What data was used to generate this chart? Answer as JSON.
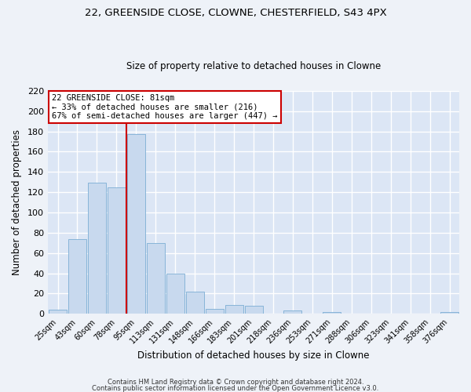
{
  "title1": "22, GREENSIDE CLOSE, CLOWNE, CHESTERFIELD, S43 4PX",
  "title2": "Size of property relative to detached houses in Clowne",
  "xlabel": "Distribution of detached houses by size in Clowne",
  "ylabel": "Number of detached properties",
  "bin_labels": [
    "25sqm",
    "43sqm",
    "60sqm",
    "78sqm",
    "95sqm",
    "113sqm",
    "131sqm",
    "148sqm",
    "166sqm",
    "183sqm",
    "201sqm",
    "218sqm",
    "236sqm",
    "253sqm",
    "271sqm",
    "288sqm",
    "306sqm",
    "323sqm",
    "341sqm",
    "358sqm",
    "376sqm"
  ],
  "bar_values": [
    4,
    74,
    129,
    125,
    177,
    70,
    40,
    22,
    5,
    9,
    8,
    0,
    3,
    0,
    2,
    0,
    0,
    0,
    0,
    0,
    2
  ],
  "bar_color": "#c8d9ee",
  "bar_edge_color": "#7badd4",
  "vline_x_idx": 3,
  "vline_color": "#cc0000",
  "ylim": [
    0,
    220
  ],
  "yticks": [
    0,
    20,
    40,
    60,
    80,
    100,
    120,
    140,
    160,
    180,
    200,
    220
  ],
  "annotation_title": "22 GREENSIDE CLOSE: 81sqm",
  "annotation_line1": "← 33% of detached houses are smaller (216)",
  "annotation_line2": "67% of semi-detached houses are larger (447) →",
  "annotation_box_color": "#ffffff",
  "annotation_border_color": "#cc0000",
  "footer1": "Contains HM Land Registry data © Crown copyright and database right 2024.",
  "footer2": "Contains public sector information licensed under the Open Government Licence v3.0.",
  "fig_bg_color": "#eef2f8",
  "plot_bg_color": "#dce6f5",
  "grid_color": "#ffffff",
  "title1_fontsize": 9.5,
  "title2_fontsize": 8.5
}
